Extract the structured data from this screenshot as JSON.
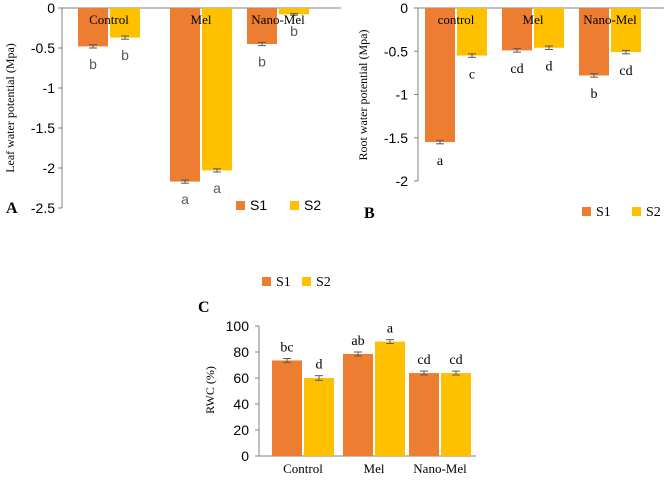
{
  "colors": {
    "s1": "#ED7D31",
    "s2": "#FFC000",
    "axis": "#808080",
    "grid": "#D9D9D9",
    "text": "#000000",
    "sig_text": "#595959"
  },
  "chart_data": [
    {
      "id": "A",
      "panel_label": "A",
      "type": "bar",
      "categories": [
        "Control",
        "Mel",
        "Nano-Mel"
      ],
      "series": [
        {
          "name": "S1",
          "values": [
            -0.48,
            -2.17,
            -0.45
          ],
          "errors": [
            0.02,
            0.02,
            0.02
          ],
          "sig": [
            "b",
            "a",
            "b"
          ]
        },
        {
          "name": "S2",
          "values": [
            -0.37,
            -2.03,
            -0.08
          ],
          "errors": [
            0.02,
            0.02,
            0.01
          ],
          "sig": [
            "b",
            "a",
            "b"
          ]
        }
      ],
      "ylabel": "Leaf water potential (Mpa)",
      "ylim": [
        -2.5,
        0
      ],
      "yticks": [
        0,
        -0.5,
        -1,
        -1.5,
        -2,
        -2.5
      ],
      "ytick_labels": [
        "0",
        "-0.5",
        "-1",
        "-1.5",
        "-2",
        "-2.5"
      ],
      "legend": [
        "S1",
        "S2"
      ],
      "legend_position": "bottom"
    },
    {
      "id": "B",
      "panel_label": "B",
      "type": "bar",
      "categories": [
        "control",
        "Mel",
        "Nano-Mel"
      ],
      "series": [
        {
          "name": "S1",
          "values": [
            -1.55,
            -0.49,
            -0.78
          ],
          "errors": [
            0.02,
            0.02,
            0.02
          ],
          "sig": [
            "a",
            "cd",
            "b"
          ]
        },
        {
          "name": "S2",
          "values": [
            -0.55,
            -0.46,
            -0.51
          ],
          "errors": [
            0.02,
            0.02,
            0.02
          ],
          "sig": [
            "c",
            "d",
            "cd"
          ]
        }
      ],
      "ylabel": "Root water potential (Mpa)",
      "ylim": [
        -2,
        0
      ],
      "yticks": [
        0,
        -0.5,
        -1,
        -1.5,
        -2
      ],
      "ytick_labels": [
        "0",
        "-0.5",
        "-1",
        "-1.5",
        "-2"
      ],
      "legend": [
        "S1",
        "S2"
      ],
      "legend_position": "bottom"
    },
    {
      "id": "C",
      "panel_label": "C",
      "type": "bar",
      "categories": [
        "Control",
        "Mel",
        "Nano-Mel"
      ],
      "series": [
        {
          "name": "S1",
          "values": [
            73.5,
            78.5,
            63.8
          ],
          "errors": [
            1.5,
            1.5,
            1.5
          ],
          "sig": [
            "bc",
            "ab",
            "cd"
          ]
        },
        {
          "name": "S2",
          "values": [
            60.0,
            88.0,
            63.8
          ],
          "errors": [
            1.8,
            1.5,
            1.5
          ],
          "sig": [
            "d",
            "a",
            "cd"
          ]
        }
      ],
      "ylabel": "RWC (%)",
      "ylim": [
        0,
        100
      ],
      "yticks": [
        0,
        20,
        40,
        60,
        80,
        100
      ],
      "ytick_labels": [
        "0",
        "20",
        "40",
        "60",
        "80",
        "100"
      ],
      "legend": [
        "S1",
        "S2"
      ],
      "legend_position": "top"
    }
  ]
}
